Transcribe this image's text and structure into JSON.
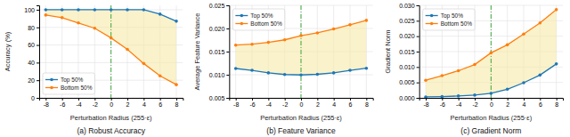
{
  "chart_data": [
    {
      "type": "band",
      "title": "(a) Robust Accuracy",
      "xlabel": "Perturbation Radius (255·ε)",
      "ylabel": "Accuracy (%)",
      "x": [
        -8,
        -6,
        -4,
        -2,
        0,
        2,
        4,
        6,
        8
      ],
      "series": [
        {
          "name": "Top 50%",
          "marker": "circle",
          "values": [
            100,
            100,
            100,
            100,
            100,
            100,
            100,
            95,
            87
          ]
        },
        {
          "name": "Bottom 50%",
          "marker": "circle",
          "values": [
            94,
            91,
            85,
            79,
            68,
            55,
            39,
            25,
            15
          ]
        }
      ],
      "vline": 0,
      "xlim": [
        -8.8,
        8.8
      ],
      "xticks": [
        -8,
        -6,
        -4,
        -2,
        0,
        2,
        4,
        6,
        8
      ],
      "ylim": [
        0,
        105
      ],
      "yticks": [
        0,
        20,
        40,
        60,
        80,
        100
      ],
      "grid": true,
      "legend": "lower left"
    },
    {
      "type": "band",
      "title": "(b) Feature Variance",
      "xlabel": "Perturbation Radius (255·ε)",
      "ylabel": "Average Feature Variance",
      "x": [
        -8,
        -6,
        -4,
        -2,
        0,
        2,
        4,
        6,
        8
      ],
      "series": [
        {
          "name": "Top 50%",
          "marker": "circle",
          "values": [
            0.01135,
            0.01095,
            0.0104,
            0.01005,
            0.00995,
            0.0101,
            0.0104,
            0.01095,
            0.0114
          ]
        },
        {
          "name": "Bottom 50%",
          "marker": "circle",
          "values": [
            0.0164,
            0.0166,
            0.017,
            0.01755,
            0.01845,
            0.01905,
            0.0199,
            0.0208,
            0.02175
          ]
        }
      ],
      "vline": 0,
      "xlim": [
        -8.8,
        8.8
      ],
      "xticks": [
        -8,
        -6,
        -4,
        -2,
        0,
        2,
        4,
        6,
        8
      ],
      "ylim": [
        0.005,
        0.025
      ],
      "yticks": [
        0.005,
        {
          "value": 0.01,
          "label": "0.010"
        },
        0.015,
        {
          "value": 0.02,
          "label": "0.020"
        },
        0.025
      ],
      "grid": true,
      "legend": "upper left"
    },
    {
      "type": "band",
      "title": "(c) Gradient Norm",
      "xlabel": "Perturbation Radius (255·ε)",
      "ylabel": "Gradient Norm",
      "x": [
        -8,
        -6,
        -4,
        -2,
        0,
        2,
        4,
        6,
        8
      ],
      "series": [
        {
          "name": "Top 50%",
          "marker": "circle",
          "values": [
            0.0003,
            0.0004,
            0.0006,
            0.0009,
            0.00145,
            0.0028,
            0.0049,
            0.0074,
            0.011
          ]
        },
        {
          "name": "Bottom 50%",
          "marker": "circle",
          "values": [
            0.0057,
            0.0072,
            0.0088,
            0.0108,
            0.0146,
            0.0172,
            0.0207,
            0.0243,
            0.0286
          ]
        }
      ],
      "vline": 0,
      "xlim": [
        -8.8,
        8.8
      ],
      "xticks": [
        -8,
        -6,
        -4,
        -2,
        0,
        2,
        4,
        6,
        8
      ],
      "ylim": [
        0,
        0.03
      ],
      "yticks": [
        {
          "value": 0,
          "label": "0.000"
        },
        0.005,
        {
          "value": 0.01,
          "label": "0.010"
        },
        0.015,
        {
          "value": 0.02,
          "label": "0.020"
        },
        0.025,
        {
          "value": 0.03,
          "label": "0.030"
        }
      ],
      "grid": true,
      "legend": "upper left"
    }
  ]
}
